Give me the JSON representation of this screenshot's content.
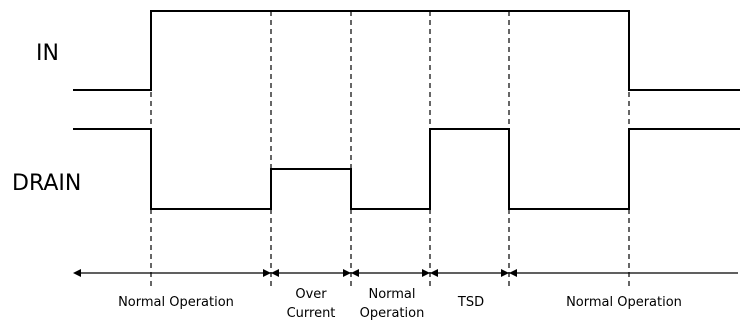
{
  "signals": {
    "in_label": "IN",
    "drain_label": "DRAIN"
  },
  "regions": [
    {
      "id": "normal-operation-1",
      "lines": [
        "Normal Operation"
      ]
    },
    {
      "id": "over-current",
      "lines": [
        "Over",
        "Current"
      ]
    },
    {
      "id": "normal-operation-2",
      "lines": [
        "Normal",
        "Operation"
      ]
    },
    {
      "id": "tsd",
      "lines": [
        "TSD"
      ]
    },
    {
      "id": "normal-operation-3",
      "lines": [
        "Normal Operation"
      ]
    }
  ]
}
